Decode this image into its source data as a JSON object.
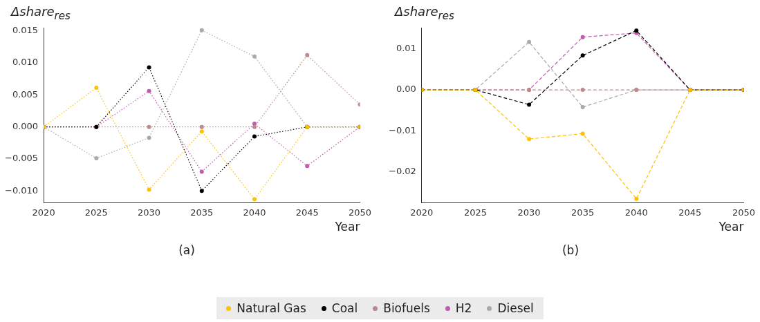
{
  "chart_data": [
    {
      "type": "line",
      "ylabel": "Δshare$_{res}$",
      "xlabel": "Year",
      "annotations": [
        "(a)"
      ],
      "x": [
        2020,
        2025,
        2030,
        2035,
        2040,
        2045,
        2050
      ],
      "xlim": [
        2020,
        2050
      ],
      "xticks": [
        2020,
        2025,
        2030,
        2035,
        2040,
        2045,
        2050
      ],
      "ylim": [
        -0.0118,
        0.0155
      ],
      "yticks": [
        {
          "value": -0.01,
          "label": "−0.010"
        },
        {
          "value": -0.005,
          "label": "−0.005"
        },
        {
          "value": 0,
          "label": "0.000"
        },
        {
          "value": 0.005,
          "label": "0.005"
        },
        {
          "value": 0.01,
          "label": "0.010"
        },
        {
          "value": 0.015,
          "label": "0.015"
        }
      ],
      "grid": false,
      "legend": "bottom",
      "marker": "circle",
      "line_style": "dotted",
      "series": [
        {
          "name": "Natural Gas",
          "color": "#ffc000",
          "values": [
            0,
            0.0061,
            -0.0098,
            -0.0007,
            -0.0113,
            0,
            0
          ]
        },
        {
          "name": "Coal",
          "color": "#000000",
          "values": [
            0,
            0,
            0.0093,
            -0.01,
            -0.0015,
            0,
            0
          ]
        },
        {
          "name": "Biofuels",
          "color": "#bc8a8a",
          "values": [
            0,
            0,
            0,
            0,
            0,
            0.0112,
            0.0035
          ]
        },
        {
          "name": "H2",
          "color": "#c05aae",
          "values": [
            0,
            0,
            0.0056,
            -0.007,
            0.0005,
            -0.0061,
            0
          ]
        },
        {
          "name": "Diesel",
          "color": "#a9a9a9",
          "values": [
            0,
            -0.0049,
            -0.0017,
            0.0151,
            0.011,
            0,
            0
          ]
        }
      ]
    },
    {
      "type": "line",
      "ylabel": "Δshare$_{res}$",
      "xlabel": "Year",
      "annotations": [
        "(b)"
      ],
      "x": [
        2020,
        2025,
        2030,
        2035,
        2040,
        2045,
        2050
      ],
      "xlim": [
        2020,
        2050
      ],
      "xticks": [
        2020,
        2025,
        2030,
        2035,
        2040,
        2045,
        2050
      ],
      "ylim": [
        -0.0275,
        0.0152
      ],
      "yticks": [
        {
          "value": -0.02,
          "label": "−0.02"
        },
        {
          "value": -0.01,
          "label": "−0.01"
        },
        {
          "value": 0,
          "label": "0.00"
        },
        0.01
      ],
      "grid": false,
      "legend": "bottom",
      "marker": "circle",
      "line_style": "dashed",
      "series": [
        {
          "name": "Natural Gas",
          "color": "#ffc000",
          "values": [
            0,
            0,
            -0.012,
            -0.0107,
            -0.0266,
            0,
            0
          ]
        },
        {
          "name": "Coal",
          "color": "#000000",
          "values": [
            0,
            0,
            -0.0036,
            0.0084,
            0.0145,
            0,
            0
          ]
        },
        {
          "name": "Biofuels",
          "color": "#bc8a8a",
          "values": [
            0,
            0,
            0,
            0,
            0,
            0,
            0
          ]
        },
        {
          "name": "H2",
          "color": "#c05aae",
          "values": [
            0,
            0,
            0,
            0.0129,
            0.0139,
            0,
            0
          ]
        },
        {
          "name": "Diesel",
          "color": "#a9a9a9",
          "values": [
            0,
            0,
            0.0117,
            -0.0042,
            0,
            0,
            0
          ]
        }
      ]
    }
  ]
}
